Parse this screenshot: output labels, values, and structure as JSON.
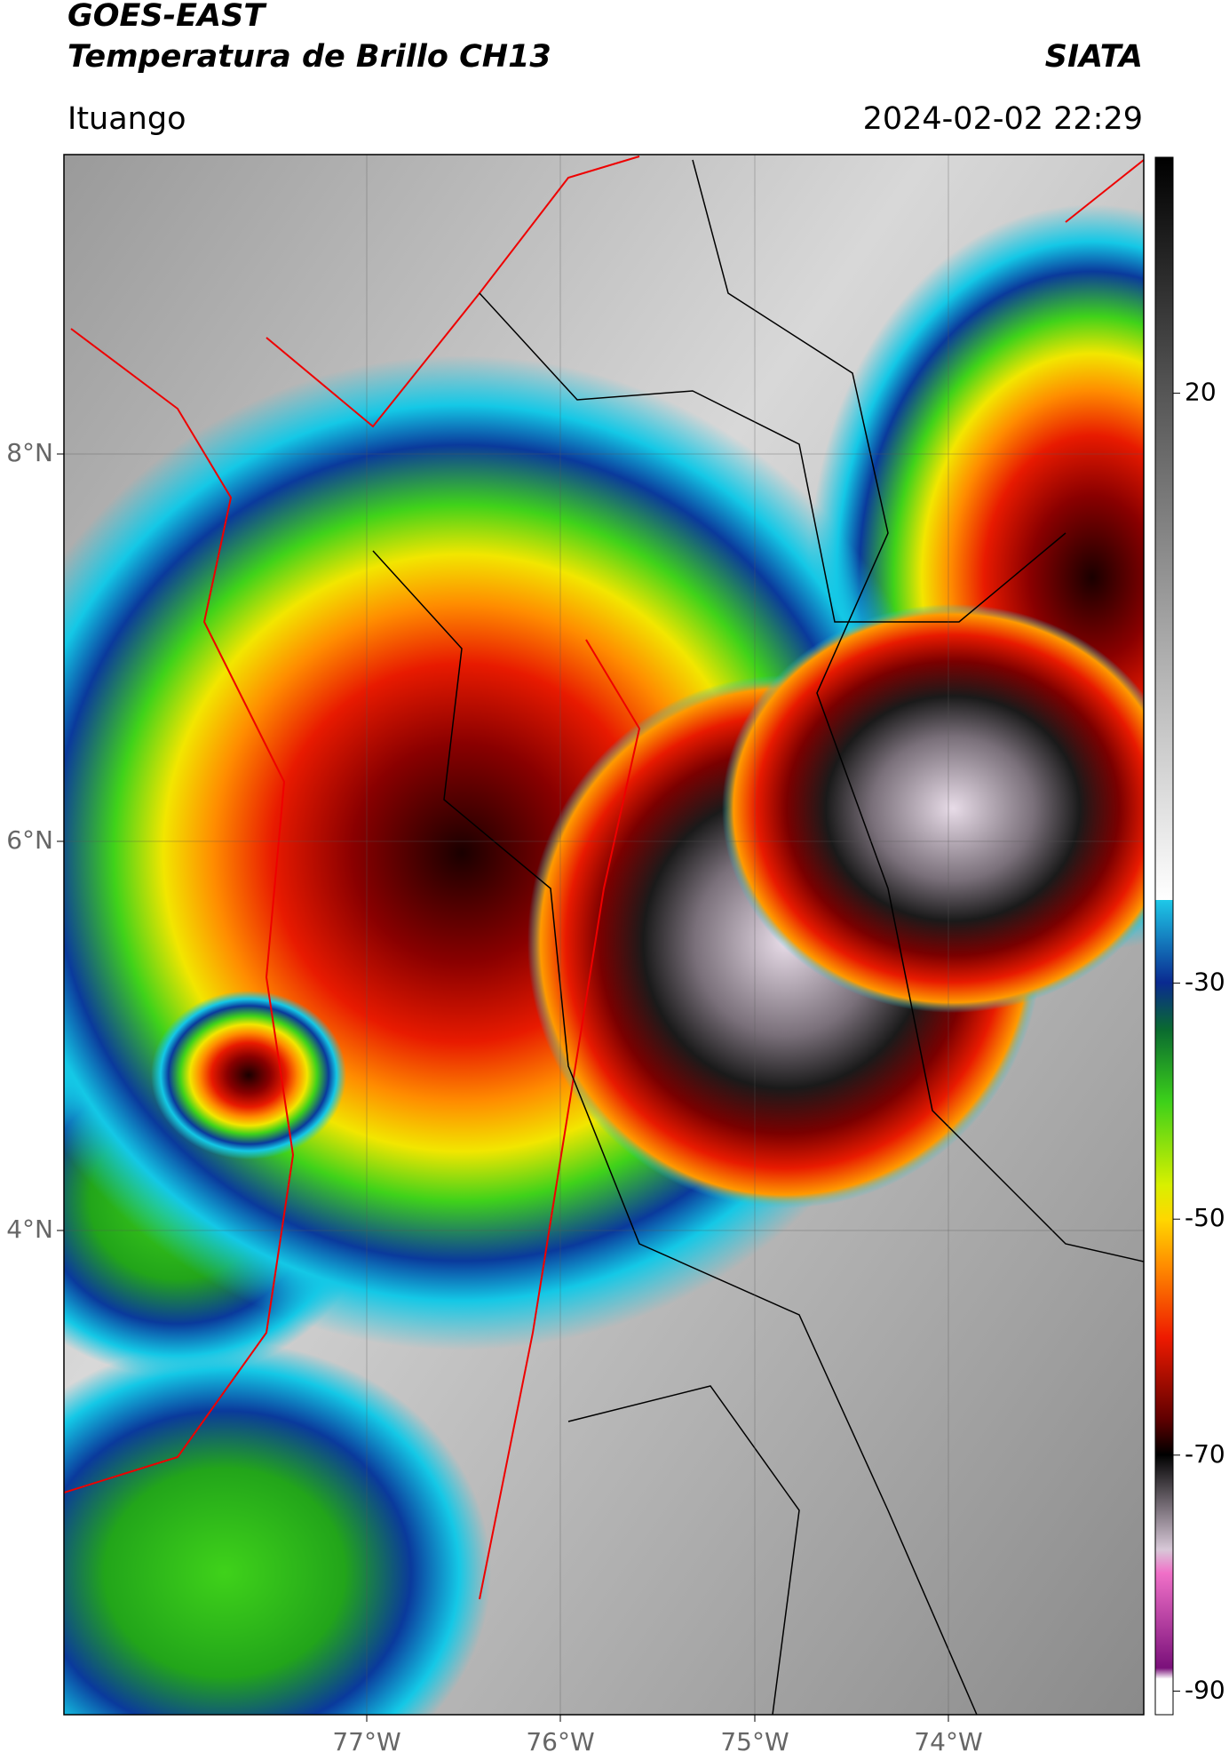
{
  "header": {
    "title": "GOES-EAST",
    "subtitle": "Temperatura de Brillo CH13",
    "brand": "SIATA",
    "location": "Ituango",
    "datetime": "2024-02-02 22:29"
  },
  "map": {
    "lat_labels": [
      "8°N",
      "6°N",
      "4°N"
    ],
    "lon_labels": [
      "77°W",
      "76°W",
      "75°W",
      "74°W"
    ]
  },
  "colorbar": {
    "range": [
      -92,
      40
    ],
    "ticks": [
      20,
      -30,
      -50,
      -70,
      -90
    ]
  }
}
